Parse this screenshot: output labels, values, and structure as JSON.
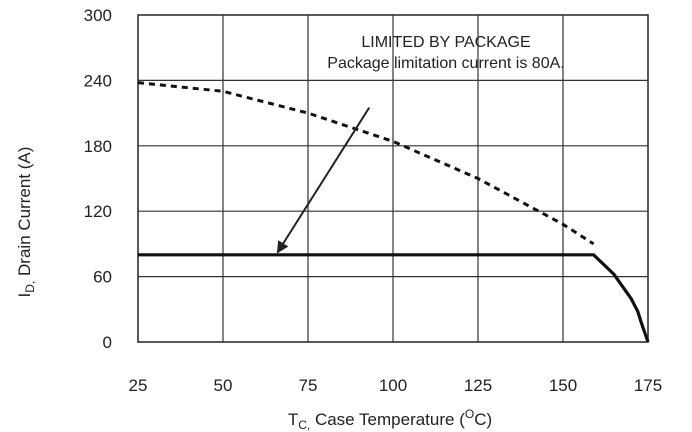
{
  "chart_data": {
    "type": "line",
    "title": "",
    "xlabel": {
      "main": "T",
      "sub": "C,",
      "rest": " Case Temperature (",
      "unit_sup": "O",
      "unit_rest": "C)"
    },
    "ylabel": {
      "main": "I",
      "sub": "D,",
      "rest": " Drain Current (A)"
    },
    "xlim": [
      25,
      175
    ],
    "ylim": [
      0,
      300
    ],
    "x_ticks": [
      25,
      50,
      75,
      100,
      125,
      150,
      175
    ],
    "x_tick_labels": [
      "25",
      "50",
      "75",
      "100",
      "125",
      "150",
      "175"
    ],
    "y_ticks": [
      0,
      60,
      120,
      180,
      240,
      300
    ],
    "y_tick_labels": [
      "0",
      "60",
      "120",
      "180",
      "240",
      "300"
    ],
    "grid": true,
    "series": [
      {
        "style": "dashed",
        "x": [
          25,
          50,
          75,
          100,
          125,
          150,
          159
        ],
        "y": [
          238,
          230,
          210,
          184,
          150,
          108,
          90
        ]
      },
      {
        "style": "solid",
        "x": [
          25,
          159,
          165,
          170,
          172,
          173,
          175
        ],
        "y": [
          80,
          80,
          62,
          40,
          28,
          18,
          0
        ]
      }
    ],
    "annotations": {
      "line1": "LIMITED BY PACKAGE",
      "line2": "Package limitation current is 80A.",
      "arrow_from": {
        "x": 93,
        "y": 215
      },
      "arrow_to": {
        "x": 66,
        "y": 82
      }
    }
  }
}
